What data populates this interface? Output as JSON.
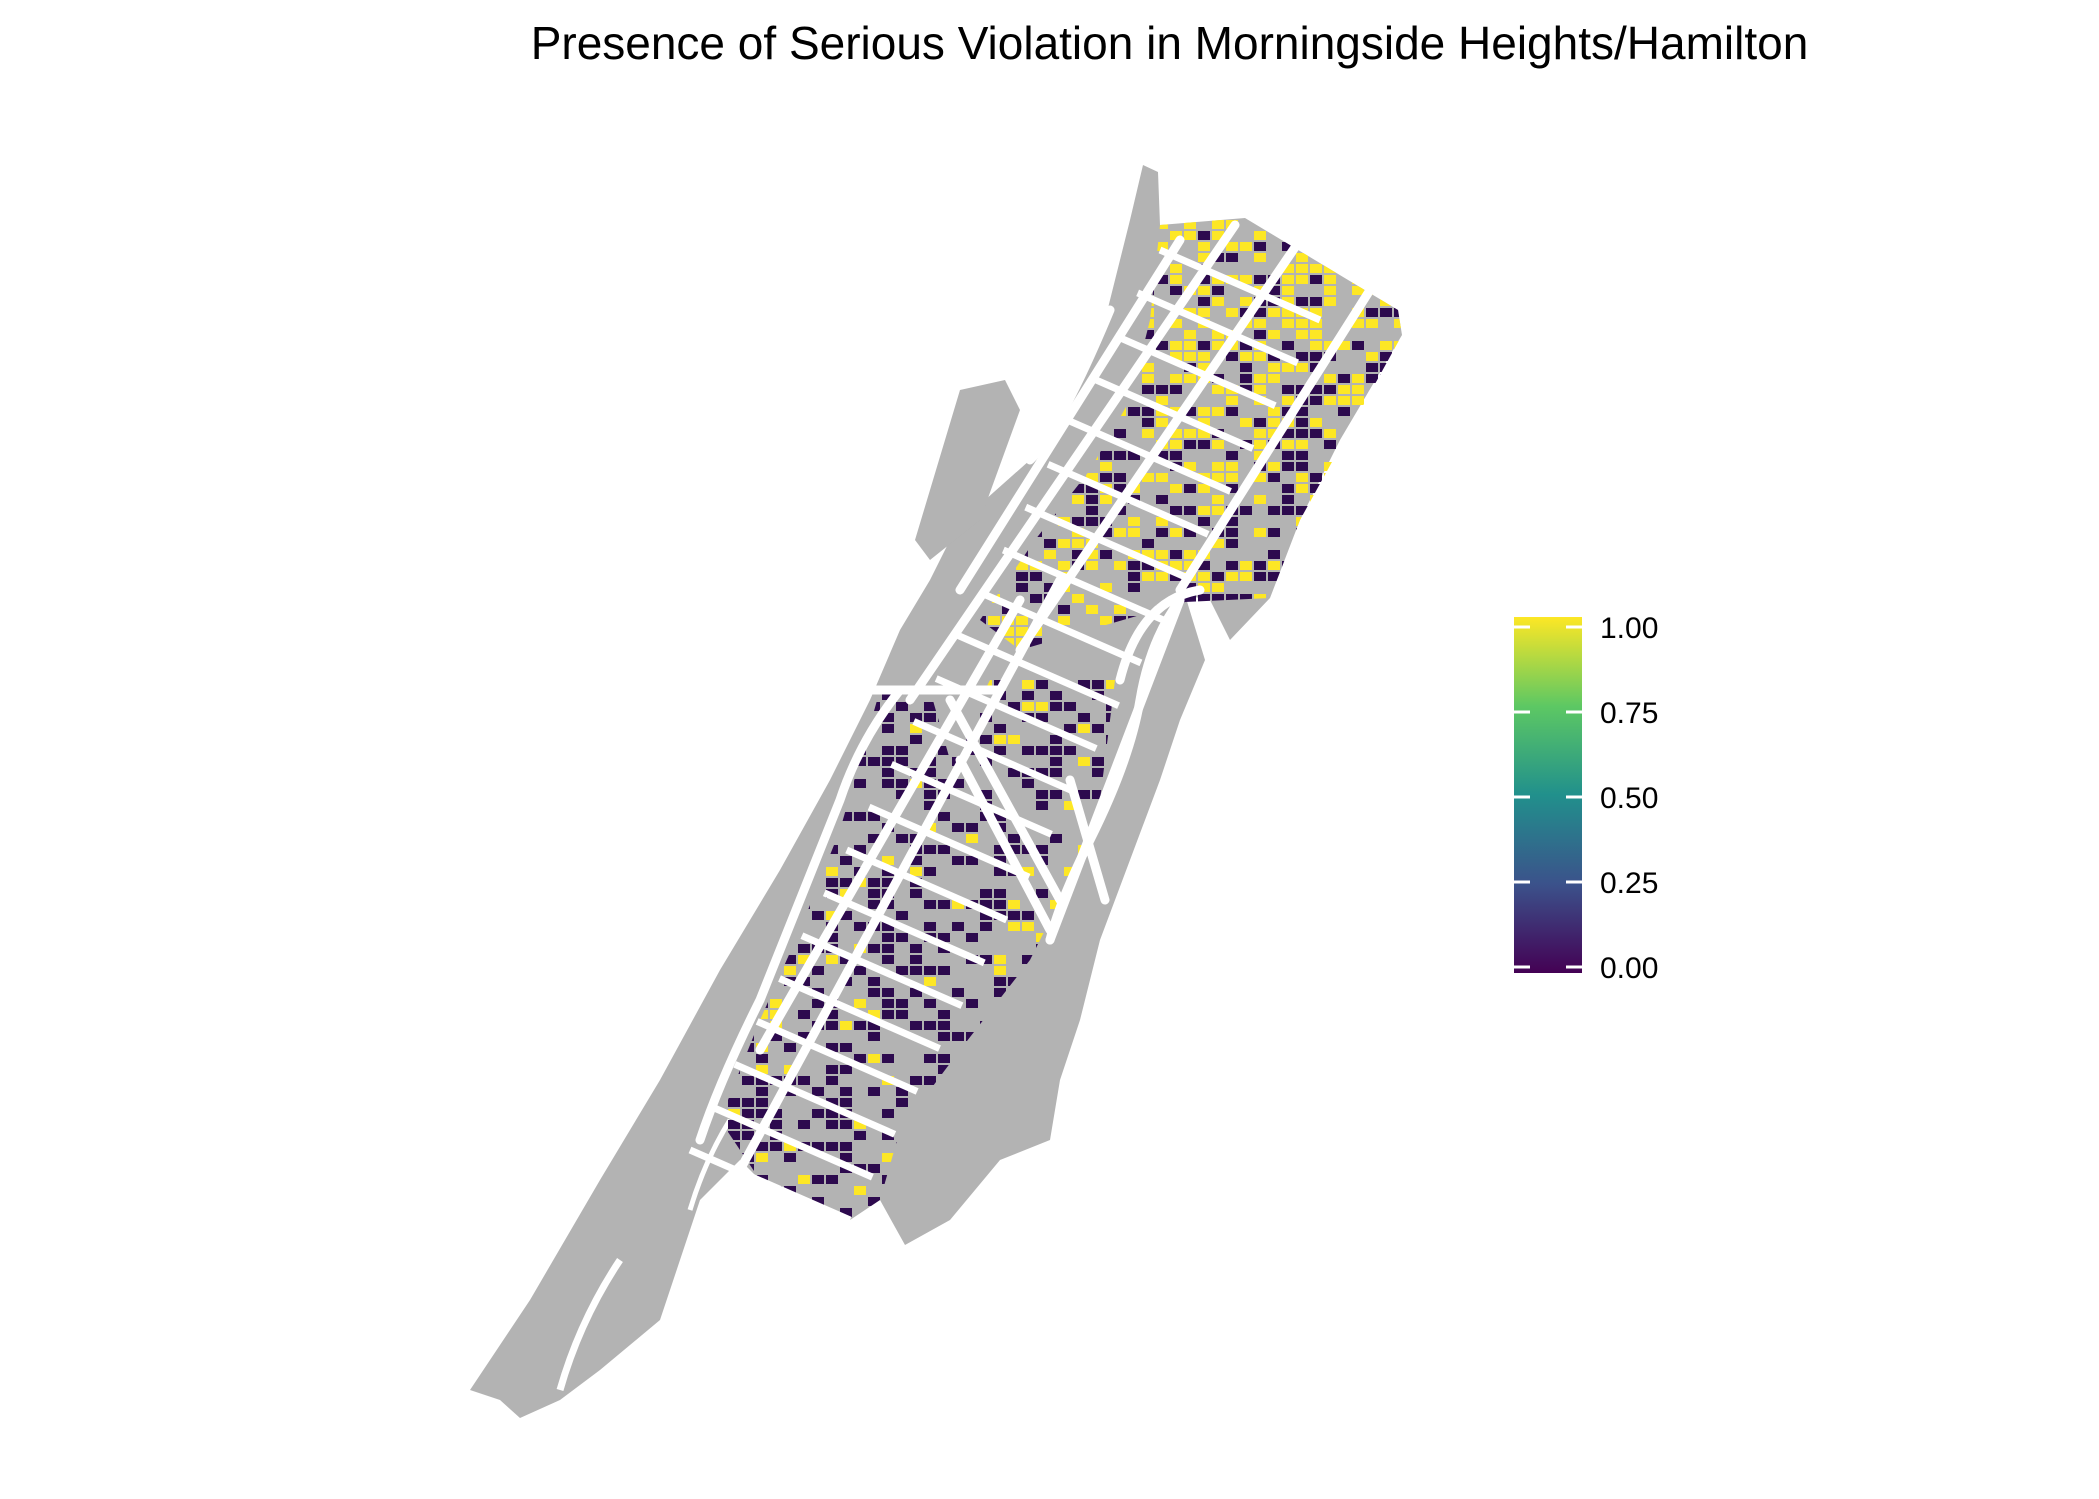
{
  "title": "Presence of Serious Violation in Morningside Heights/Hamilton",
  "legend": {
    "ticks": [
      "1.00",
      "0.75",
      "0.50",
      "0.25",
      "0.00"
    ],
    "colors": [
      "#FDE725",
      "#5DC863",
      "#21908C",
      "#3B528B",
      "#440154"
    ]
  },
  "colors": {
    "background_land": "#B3B3B3",
    "street": "#FFFFFF",
    "value_high": "#FDE725",
    "value_low": "#2D0A4E"
  }
}
